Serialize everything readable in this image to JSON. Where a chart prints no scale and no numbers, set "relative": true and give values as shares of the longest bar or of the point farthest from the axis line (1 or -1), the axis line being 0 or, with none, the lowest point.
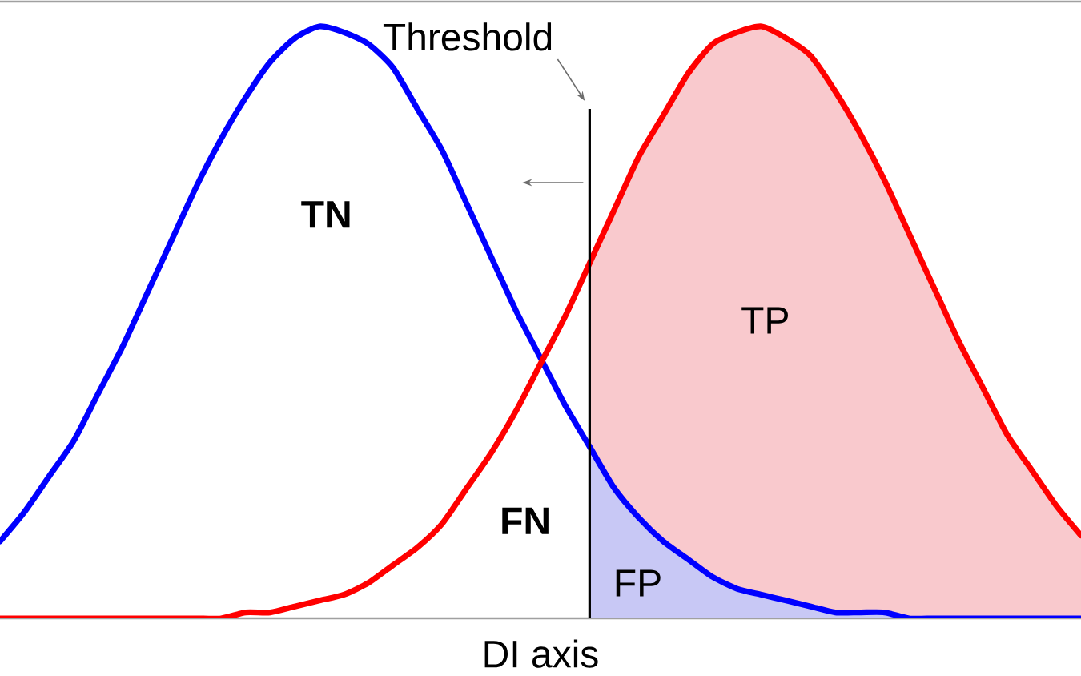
{
  "chart_data": {
    "type": "line",
    "relative": true,
    "xlabel": "DI axis",
    "categories": [
      null,
      null,
      null,
      null,
      null,
      null,
      null,
      null,
      null,
      null,
      null,
      null,
      null,
      null,
      null,
      null,
      null,
      null,
      null,
      null,
      null,
      null,
      null,
      null,
      null,
      null,
      null,
      null,
      null,
      null,
      null,
      null,
      null,
      null,
      null,
      null,
      null,
      null,
      null,
      null,
      null,
      null,
      null,
      null,
      null
    ],
    "series": [
      {
        "color": "#0000ff",
        "values": [
          0.13,
          0.18,
          0.24,
          0.3,
          0.38,
          0.46,
          0.55,
          0.64,
          0.73,
          0.81,
          0.88,
          0.94,
          0.98,
          1.0,
          0.99,
          0.97,
          0.93,
          0.86,
          0.79,
          0.7,
          0.61,
          0.52,
          0.44,
          0.36,
          0.29,
          0.22,
          0.17,
          0.13,
          0.1,
          0.07,
          0.05,
          0.04,
          0.03,
          0.02,
          0.01,
          0.01,
          0.01,
          0,
          0,
          0,
          0,
          0,
          0,
          0,
          0
        ]
      },
      {
        "color": "#ff0000",
        "values": [
          0,
          0,
          0,
          0,
          0,
          0,
          0,
          0,
          0,
          0,
          0.01,
          0.01,
          0.02,
          0.03,
          0.04,
          0.06,
          0.09,
          0.12,
          0.16,
          0.22,
          0.28,
          0.35,
          0.43,
          0.51,
          0.6,
          0.69,
          0.78,
          0.85,
          0.92,
          0.97,
          0.99,
          1.0,
          0.98,
          0.95,
          0.89,
          0.82,
          0.74,
          0.65,
          0.56,
          0.47,
          0.39,
          0.31,
          0.25,
          0.19,
          0.14
        ]
      },
      {
        "type": "area",
        "color": "#f9c9cd",
        "values": [
          null,
          null,
          null,
          null,
          null,
          null,
          null,
          null,
          null,
          null,
          null,
          null,
          null,
          null,
          null,
          null,
          null,
          null,
          null,
          null,
          null,
          null,
          null,
          null,
          0.6,
          0.69,
          0.78,
          0.85,
          0.92,
          0.97,
          0.99,
          1.0,
          0.98,
          0.95,
          0.89,
          0.82,
          0.74,
          0.65,
          0.56,
          0.47,
          0.39,
          0.31,
          0.25,
          0.19,
          0.14
        ]
      },
      {
        "type": "area",
        "color": "#c8c8f5",
        "values": [
          null,
          null,
          null,
          null,
          null,
          null,
          null,
          null,
          null,
          null,
          null,
          null,
          null,
          null,
          null,
          null,
          null,
          null,
          null,
          null,
          null,
          null,
          null,
          null,
          0.29,
          0.22,
          0.17,
          0.13,
          0.1,
          0.07,
          0.05,
          0.04,
          0.03,
          0.02,
          0.01,
          0.01,
          0.01,
          0,
          0,
          0,
          0,
          0,
          0,
          0,
          0
        ]
      }
    ],
    "annotations": [
      "Threshold",
      "TN",
      "TP",
      "FN",
      "FP"
    ]
  }
}
